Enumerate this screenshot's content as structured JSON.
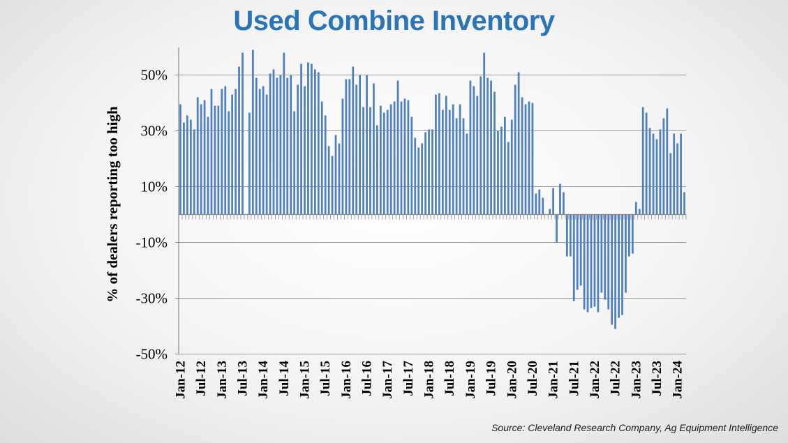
{
  "chart_data": {
    "type": "bar",
    "title": "Used Combine Inventory",
    "xlabel": "",
    "ylabel": "% of dealers reporting too high",
    "ylim": [
      -50,
      60
    ],
    "yticks": [
      50,
      30,
      10,
      -10,
      -30,
      -50
    ],
    "ytick_labels": [
      "50%",
      "30%",
      "10%",
      "-10%",
      "-30%",
      "-50%"
    ],
    "grid": true,
    "xtick_labels": [
      "Jan-12",
      "Jul-12",
      "Jan-13",
      "Jul-13",
      "Jan-14",
      "Jul-14",
      "Jan-15",
      "Jul-15",
      "Jan-16",
      "Jul-16",
      "Jan-17",
      "Jul-17",
      "Jan-18",
      "Jul-18",
      "Jan-19",
      "Jul-19",
      "Jan-20",
      "Jul-20",
      "Jan-21",
      "Jul-21",
      "Jan-22",
      "Jul-22",
      "Jan-23",
      "Jul-23",
      "Jan-24"
    ],
    "series": [
      {
        "name": "% of dealers reporting too high",
        "start": "Jan-12",
        "frequency": "monthly",
        "color": "#4f81bd",
        "values": [
          39.5,
          33,
          35.5,
          34,
          30.5,
          42,
          39.5,
          41,
          35,
          45,
          39,
          39,
          45,
          46,
          37,
          43,
          45,
          53,
          58,
          0,
          36.5,
          59,
          49,
          45,
          46,
          43,
          50.5,
          52,
          49,
          50,
          58,
          49,
          50,
          37,
          46.5,
          54,
          46,
          54.5,
          54,
          52,
          51,
          40.5,
          35.5,
          24.5,
          21,
          28.5,
          25.5,
          41.5,
          48.5,
          48.5,
          53,
          46.5,
          50,
          38.5,
          50,
          38.5,
          47,
          32,
          39,
          36.5,
          37.5,
          39.5,
          40.5,
          48,
          40.5,
          41.5,
          41,
          35,
          27.5,
          24,
          25.5,
          29.5,
          30.5,
          30.5,
          43,
          43.5,
          37.5,
          42.5,
          37.5,
          39.5,
          34.5,
          39.5,
          34.5,
          29,
          48,
          46,
          42.5,
          49.5,
          58,
          49,
          48,
          44,
          30,
          31.5,
          35,
          26,
          34,
          46.5,
          51,
          42,
          39.5,
          40.5,
          40,
          7.5,
          9,
          6,
          0,
          2,
          9.5,
          -10,
          11,
          8,
          -15,
          -15,
          -31,
          -27,
          -25.5,
          -34,
          -35,
          -33.5,
          -33,
          -35,
          -28,
          -30.5,
          -34,
          -39.5,
          -41,
          -37,
          -36,
          -28,
          -15,
          -14,
          4.5,
          2,
          38.5,
          36.5,
          31,
          29,
          27,
          30.5,
          34.5,
          38,
          22,
          29,
          25.5,
          29,
          8
        ]
      }
    ]
  },
  "footer": {
    "source": "Source: Cleveland Research Company, Ag Equipment Intelligence"
  }
}
